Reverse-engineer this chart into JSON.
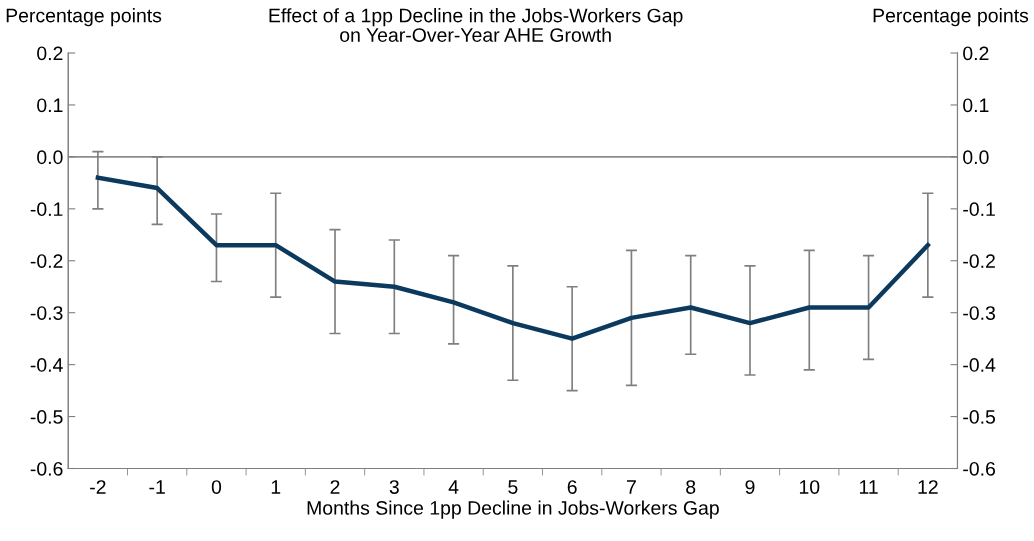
{
  "chart_data": {
    "type": "line",
    "title": "Effect of a 1pp Decline in the Jobs-Workers Gap\non Year-Over-Year AHE Growth",
    "xlabel": "Months Since 1pp Decline in Jobs-Workers Gap",
    "ylabel": "Percentage points",
    "y2label": "Percentage points",
    "categories": [
      "-2",
      "-1",
      "0",
      "1",
      "2",
      "3",
      "4",
      "5",
      "6",
      "7",
      "8",
      "9",
      "10",
      "11",
      "12"
    ],
    "series": [
      {
        "color": "#0b3a5e",
        "values": [
          -0.04,
          -0.06,
          -0.17,
          -0.17,
          -0.24,
          -0.25,
          -0.28,
          -0.32,
          -0.35,
          -0.31,
          -0.29,
          -0.32,
          -0.29,
          -0.29,
          -0.17
        ],
        "errors": [
          [
            -0.1,
            0.01
          ],
          [
            -0.13,
            0.0
          ],
          [
            -0.24,
            -0.11
          ],
          [
            -0.27,
            -0.07
          ],
          [
            -0.34,
            -0.14
          ],
          [
            -0.34,
            -0.16
          ],
          [
            -0.36,
            -0.19
          ],
          [
            -0.43,
            -0.21
          ],
          [
            -0.45,
            -0.25
          ],
          [
            -0.44,
            -0.18
          ],
          [
            -0.38,
            -0.19
          ],
          [
            -0.42,
            -0.21
          ],
          [
            -0.41,
            -0.18
          ],
          [
            -0.39,
            -0.19
          ],
          [
            -0.27,
            -0.07
          ]
        ]
      }
    ],
    "ylim": [
      -0.6,
      0.2
    ],
    "yticks": [
      -0.6,
      -0.5,
      -0.4,
      -0.3,
      -0.2,
      -0.1,
      {
        "value": 0,
        "label": "0.0"
      },
      0.1,
      0.2
    ],
    "y2lim": [
      -0.6,
      0.2
    ],
    "y2ticks": [
      -0.6,
      -0.5,
      -0.4,
      -0.3,
      -0.2,
      -0.1,
      {
        "value": 0,
        "label": "0.0"
      },
      0.1,
      0.2
    ],
    "ref_lines": [
      {
        "axis": "y",
        "value": 0,
        "color": "#8c8c8c"
      }
    ],
    "grid": false,
    "marker": "none",
    "line_style": "solid"
  }
}
